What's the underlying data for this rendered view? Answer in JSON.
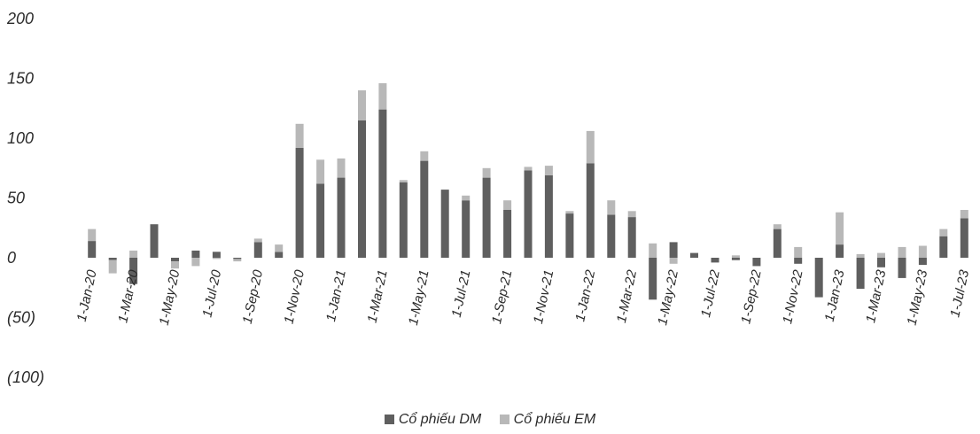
{
  "chart_data": {
    "type": "bar",
    "stacked": true,
    "y_tick_labels": [
      "200",
      "150",
      "100",
      "50",
      "0",
      "(50)",
      "(100)"
    ],
    "y_tick_values": [
      200,
      150,
      100,
      50,
      0,
      -50,
      -100
    ],
    "ylim": [
      -100,
      200
    ],
    "x_tick_labels": [
      "1-Jan-20",
      "1-Mar-20",
      "1-May-20",
      "1-Jul-20",
      "1-Sep-20",
      "1-Nov-20",
      "1-Jan-21",
      "1-Mar-21",
      "1-May-21",
      "1-Jul-21",
      "1-Sep-21",
      "1-Nov-21",
      "1-Jan-22",
      "1-Mar-22",
      "1-May-22",
      "1-Jul-22",
      "1-Sep-22",
      "1-Nov-22",
      "1-Jan-23",
      "1-Mar-23",
      "1-May-23",
      "1-Jul-23"
    ],
    "grid": false,
    "legend_position": "bottom-center",
    "categories": [
      "Jan-20",
      "Feb-20",
      "Mar-20",
      "Apr-20",
      "May-20",
      "Jun-20",
      "Jul-20",
      "Aug-20",
      "Sep-20",
      "Oct-20",
      "Nov-20",
      "Dec-20",
      "Jan-21",
      "Feb-21",
      "Mar-21",
      "Apr-21",
      "May-21",
      "Jun-21",
      "Jul-21",
      "Aug-21",
      "Sep-21",
      "Oct-21",
      "Nov-21",
      "Dec-21",
      "Jan-22",
      "Feb-22",
      "Mar-22",
      "Apr-22",
      "May-22",
      "Jun-22",
      "Jul-22",
      "Aug-22",
      "Sep-22",
      "Oct-22",
      "Nov-22",
      "Dec-22",
      "Jan-23",
      "Feb-23",
      "Mar-23",
      "Apr-23",
      "May-23",
      "Jun-23",
      "Jul-23"
    ],
    "series": [
      {
        "name": "Cổ phiếu DM",
        "color": "#5f5f5f",
        "values": [
          14,
          -2,
          -22,
          28,
          -3,
          6,
          5,
          -1,
          13,
          5,
          92,
          62,
          67,
          115,
          124,
          63,
          81,
          57,
          48,
          67,
          40,
          73,
          69,
          37,
          79,
          36,
          34,
          -35,
          13,
          4,
          -4,
          -2,
          -7,
          24,
          -5,
          -33,
          11,
          -26,
          -8,
          -17,
          -6,
          18,
          33
        ]
      },
      {
        "name": "Cổ phiếu EM",
        "color": "#b8b8b8",
        "values": [
          10,
          -11,
          6,
          0,
          -6,
          -7,
          -1,
          -2,
          3,
          6,
          20,
          20,
          16,
          25,
          22,
          2,
          8,
          0,
          4,
          8,
          8,
          3,
          8,
          2,
          27,
          12,
          5,
          12,
          -5,
          0,
          0,
          2,
          0,
          4,
          9,
          0,
          27,
          3,
          4,
          9,
          10,
          6,
          7
        ]
      }
    ]
  }
}
